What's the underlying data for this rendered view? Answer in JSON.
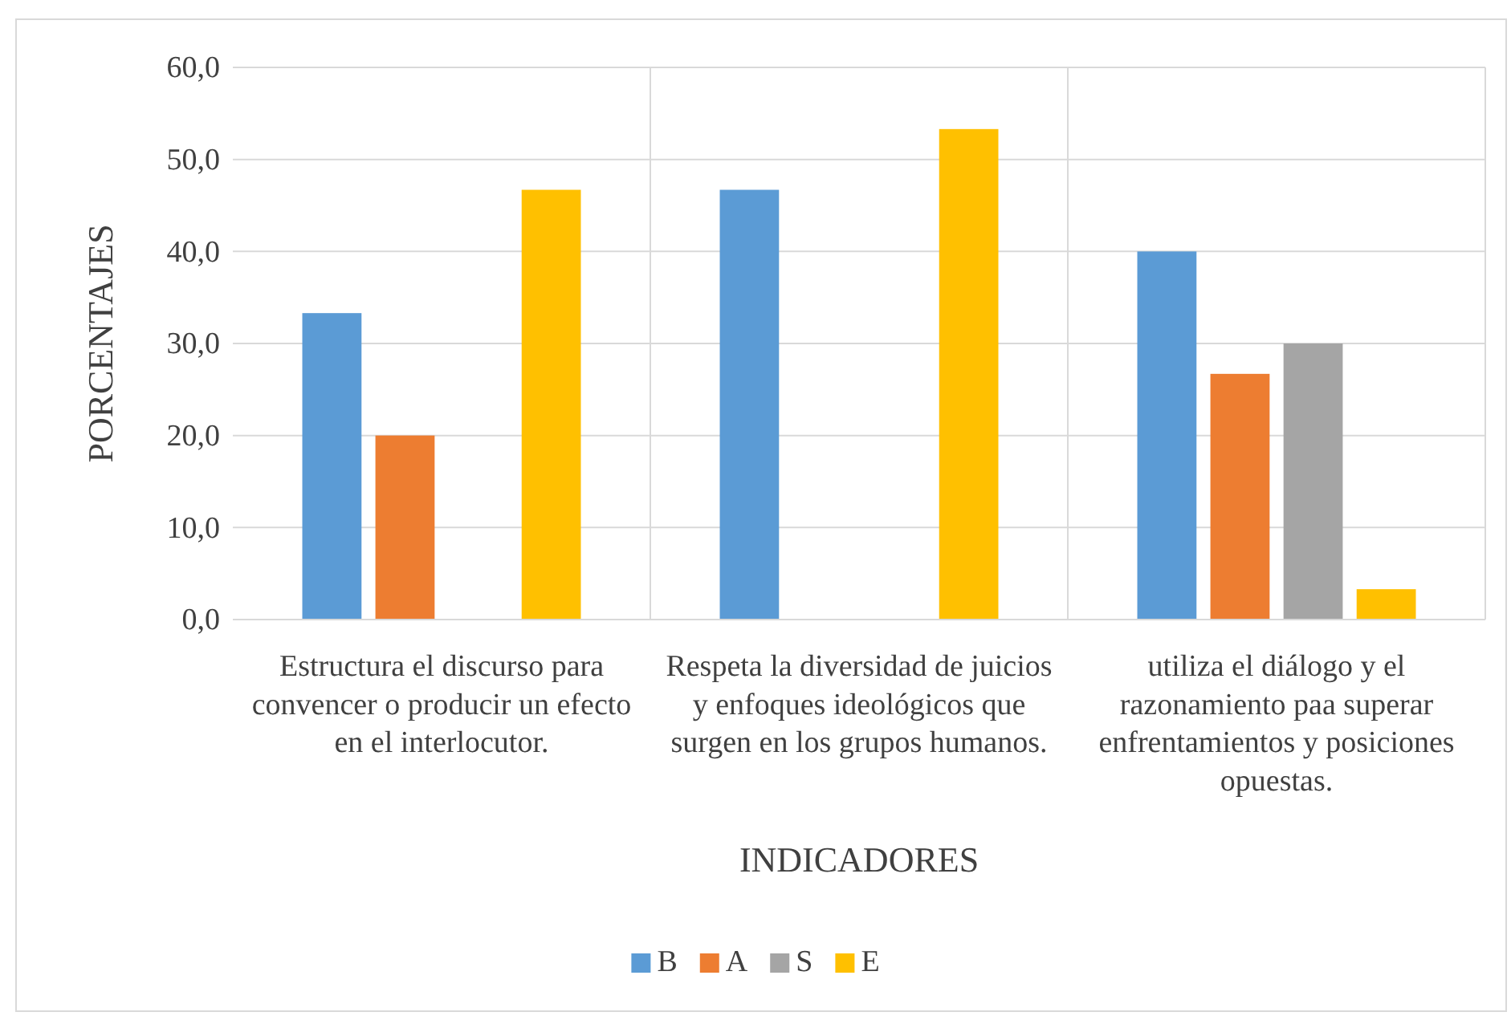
{
  "chart_data": {
    "type": "bar",
    "xlabel": "INDICADORES",
    "ylabel": "PORCENTAJES",
    "categories": [
      "Estructura el discurso para convencer o producir un efecto en el interlocutor.",
      "Respeta la diversidad de juicios y enfoques ideológicos que surgen en los grupos humanos.",
      "utiliza el diálogo y el razonamiento paa superar enfrentamientos y posiciones opuestas."
    ],
    "series": [
      {
        "name": "B",
        "color": "#5b9bd5",
        "values": [
          33.3,
          46.7,
          40.0
        ]
      },
      {
        "name": "A",
        "color": "#ed7d31",
        "values": [
          20.0,
          0,
          26.7
        ]
      },
      {
        "name": "S",
        "color": "#a5a5a5",
        "values": [
          0,
          0,
          30.0
        ]
      },
      {
        "name": "E",
        "color": "#ffc000",
        "values": [
          46.7,
          53.3,
          3.3
        ]
      }
    ],
    "ylim": [
      0,
      60
    ],
    "yticks": [
      {
        "value": 0,
        "label": "0,0"
      },
      {
        "value": 10,
        "label": "10,0"
      },
      {
        "value": 20,
        "label": "20,0"
      },
      {
        "value": 30,
        "label": "30,0"
      },
      {
        "value": 40,
        "label": "40,0"
      },
      {
        "value": 50,
        "label": "50,0"
      },
      {
        "value": 60,
        "label": "60,0"
      }
    ],
    "grid": true,
    "legend": "bottom"
  }
}
